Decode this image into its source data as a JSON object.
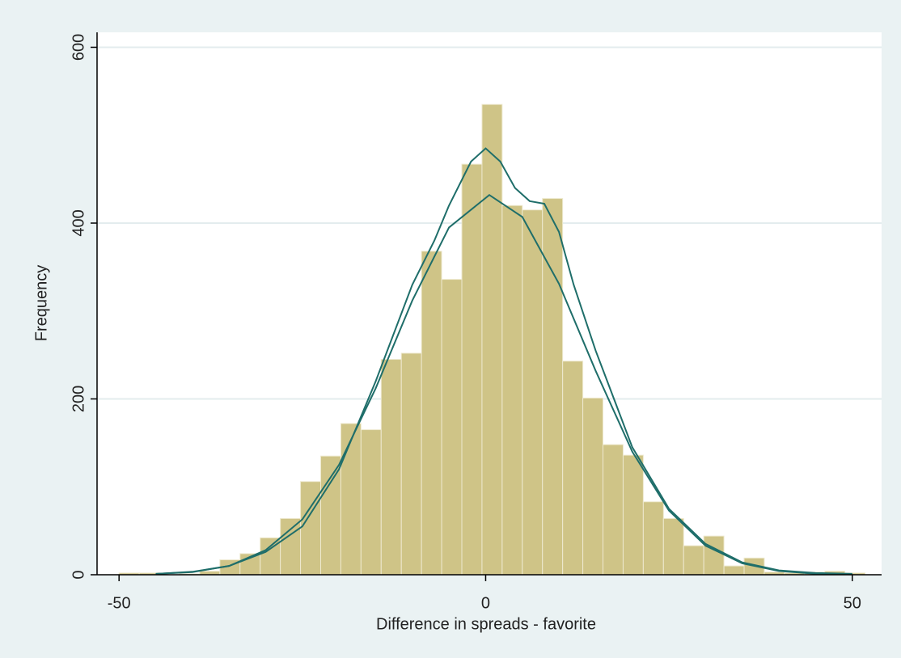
{
  "chart_data": {
    "type": "histogram",
    "xlabel": "Difference in spreads - favorite",
    "ylabel": "Frequency",
    "bins": [
      -50,
      -47.25,
      -44.5,
      -41.75,
      -39,
      -36.25,
      -33.5,
      -30.75,
      -28,
      -25.25,
      -22.5,
      -19.75,
      -17,
      -14.25,
      -11.5,
      -8.75,
      -6,
      -3.25,
      -0.5,
      2.25,
      5,
      7.75,
      10.5,
      13.25,
      16,
      18.75,
      21.5,
      24.25,
      27,
      29.75,
      32.5,
      35.25,
      38,
      40.75,
      43.5,
      46.25,
      49,
      51.75
    ],
    "values": [
      2,
      2,
      0,
      1,
      4,
      17,
      24,
      42,
      64,
      106,
      135,
      172,
      165,
      245,
      252,
      368,
      336,
      467,
      535,
      420,
      415,
      428,
      243,
      201,
      148,
      136,
      83,
      64,
      33,
      44,
      10,
      19,
      3,
      2,
      3,
      4,
      2
    ],
    "color": "#cfc487",
    "lines": [
      {
        "color": "#1f6e6a",
        "x": [
          -45,
          -40,
          -35,
          -30,
          -25,
          -20,
          -15,
          -10,
          -5,
          0.5,
          5,
          10,
          15,
          20,
          25,
          30,
          35,
          40,
          45,
          50
        ],
        "y": [
          0.9,
          3.4,
          10,
          28,
          63,
          125,
          212,
          312,
          395,
          432,
          407,
          331,
          232,
          140,
          73,
          33,
          13,
          4.3,
          1.2,
          0.3
        ]
      },
      {
        "color": "#1f6e6a",
        "x": [
          -45,
          -40,
          -35,
          -30,
          -25,
          -20,
          -15,
          -10,
          -7,
          -5,
          -2,
          0,
          2,
          4,
          6,
          8,
          10,
          12,
          15,
          20,
          25,
          30,
          35,
          40,
          45,
          50
        ],
        "y": [
          1,
          3,
          10,
          26,
          55,
          120,
          220,
          330,
          380,
          420,
          470,
          485,
          470,
          440,
          425,
          422,
          390,
          330,
          255,
          145,
          75,
          35,
          14,
          5,
          2,
          1
        ]
      }
    ],
    "xlim": [
      -53,
      54
    ],
    "ylim": [
      0,
      617
    ],
    "xticks": [
      -50,
      0,
      50
    ],
    "yticks": [
      0,
      200,
      400,
      600
    ],
    "grid": true
  }
}
